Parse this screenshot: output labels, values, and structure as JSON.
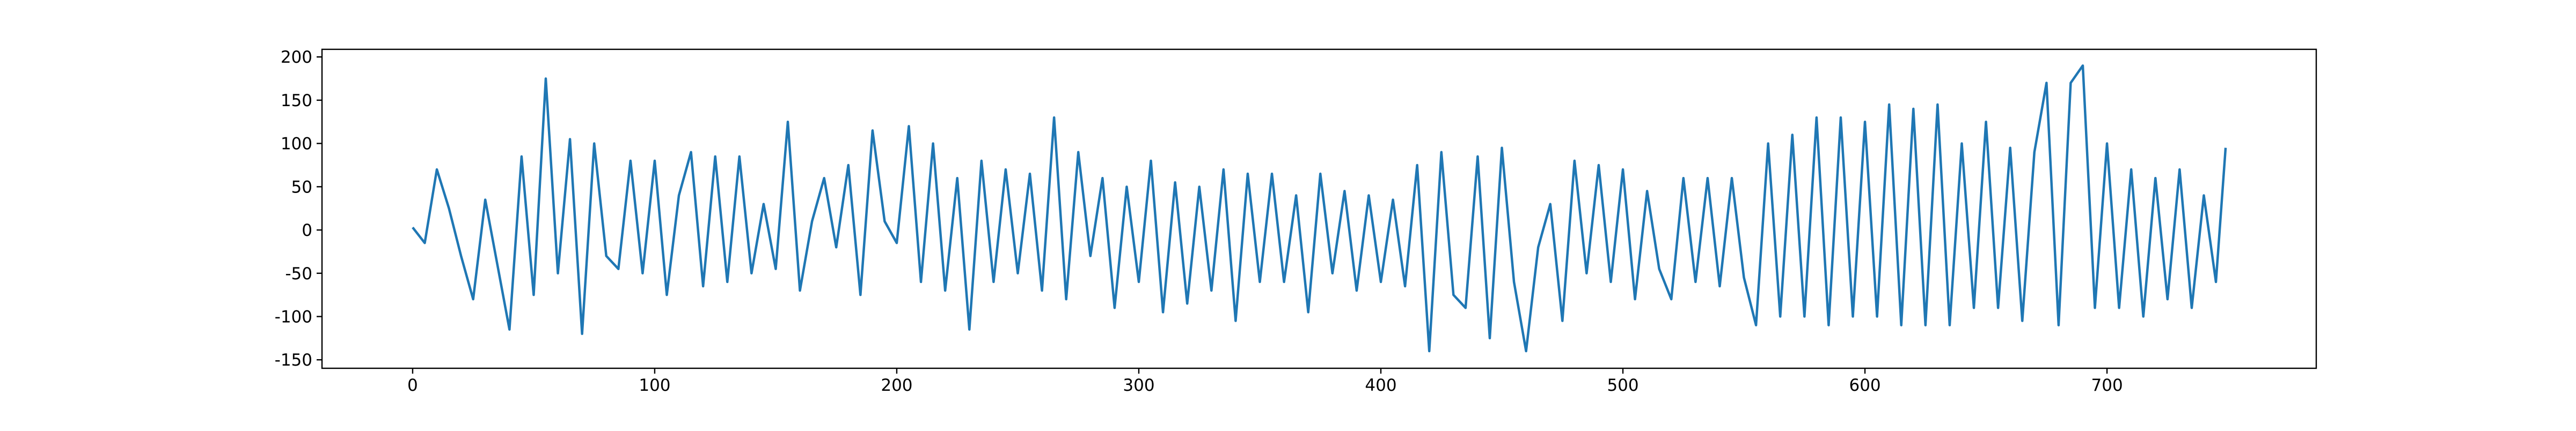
{
  "chart_data": {
    "type": "line",
    "x": [
      0,
      5,
      10,
      15,
      20,
      25,
      30,
      35,
      40,
      45,
      50,
      55,
      60,
      65,
      70,
      75,
      80,
      85,
      90,
      95,
      100,
      105,
      110,
      115,
      120,
      125,
      130,
      135,
      140,
      145,
      150,
      155,
      160,
      165,
      170,
      175,
      180,
      185,
      190,
      195,
      200,
      205,
      210,
      215,
      220,
      225,
      230,
      235,
      240,
      245,
      250,
      255,
      260,
      265,
      270,
      275,
      280,
      285,
      290,
      295,
      300,
      305,
      310,
      315,
      320,
      325,
      330,
      335,
      340,
      345,
      350,
      355,
      360,
      365,
      370,
      375,
      380,
      385,
      390,
      395,
      400,
      405,
      410,
      415,
      420,
      425,
      430,
      435,
      440,
      445,
      450,
      455,
      460,
      465,
      470,
      475,
      480,
      485,
      490,
      495,
      500,
      505,
      510,
      515,
      520,
      525,
      530,
      535,
      540,
      545,
      550,
      555,
      560,
      565,
      570,
      575,
      580,
      585,
      590,
      595,
      600,
      605,
      610,
      615,
      620,
      625,
      630,
      635,
      640,
      645,
      650,
      655,
      660,
      665,
      670,
      675,
      680,
      685,
      690,
      695,
      700,
      705,
      710,
      715,
      720,
      725,
      730,
      735,
      740,
      745,
      749
    ],
    "series": [
      {
        "color": "#1f77b4",
        "values": [
          3,
          -15,
          70,
          25,
          -30,
          -80,
          35,
          -40,
          -115,
          85,
          -75,
          175,
          -50,
          105,
          -120,
          100,
          -30,
          -45,
          80,
          -50,
          80,
          -75,
          40,
          90,
          -65,
          85,
          -60,
          85,
          -50,
          30,
          -45,
          125,
          -70,
          10,
          60,
          -20,
          75,
          -75,
          115,
          10,
          -15,
          120,
          -60,
          100,
          -70,
          60,
          -115,
          80,
          -60,
          70,
          -50,
          65,
          -70,
          130,
          -80,
          90,
          -30,
          60,
          -90,
          50,
          -60,
          80,
          -95,
          55,
          -85,
          50,
          -70,
          70,
          -105,
          65,
          -60,
          65,
          -60,
          40,
          -95,
          65,
          -50,
          45,
          -70,
          40,
          -60,
          35,
          -65,
          75,
          -140,
          90,
          -75,
          -90,
          85,
          -125,
          95,
          -60,
          -140,
          -20,
          30,
          -105,
          80,
          -50,
          75,
          -60,
          70,
          -80,
          45,
          -45,
          -80,
          60,
          -60,
          60,
          -65,
          60,
          -55,
          -110,
          100,
          -100,
          110,
          -100,
          130,
          -110,
          130,
          -100,
          125,
          -100,
          145,
          -110,
          140,
          -110,
          145,
          -110,
          100,
          -90,
          125,
          -90,
          95,
          -105,
          90,
          170,
          -110,
          170,
          190,
          -90,
          100,
          -90,
          70,
          -100,
          60,
          -80,
          70,
          -90,
          40,
          -60,
          95
        ]
      }
    ],
    "xlim": [
      -37.45,
      786.45
    ],
    "ylim": [
      -159.8,
      208.8
    ],
    "xticks": [
      0,
      100,
      200,
      300,
      400,
      500,
      600,
      700
    ],
    "yticks": [
      -150,
      -100,
      -50,
      0,
      50,
      100,
      150,
      200
    ]
  }
}
